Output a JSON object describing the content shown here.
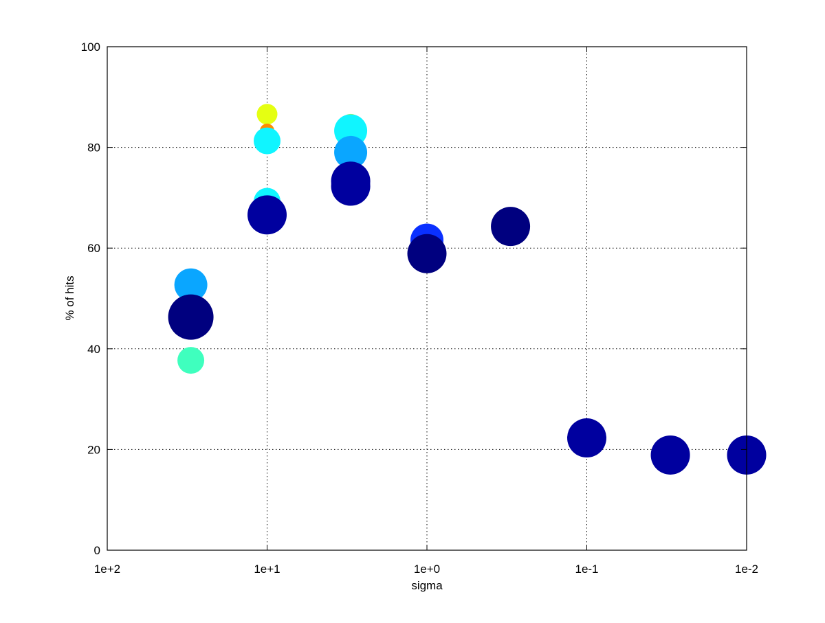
{
  "chart_data": {
    "type": "scatter",
    "title": "",
    "xlabel": "sigma",
    "ylabel": "% of hits",
    "x_scale": "log",
    "x_reversed": true,
    "xlim": [
      100,
      0.01
    ],
    "ylim": [
      0,
      100
    ],
    "grid": true,
    "x_ticks": [
      {
        "value": 100,
        "label": "1e+2"
      },
      {
        "value": 10,
        "label": "1e+1"
      },
      {
        "value": 1,
        "label": "1e+0"
      },
      {
        "value": 0.1,
        "label": "1e-1"
      },
      {
        "value": 0.01,
        "label": "1e-2"
      }
    ],
    "y_ticks": [
      {
        "value": 0,
        "label": "0"
      },
      {
        "value": 20,
        "label": "20"
      },
      {
        "value": 40,
        "label": "40"
      },
      {
        "value": 60,
        "label": "60"
      },
      {
        "value": 80,
        "label": "80"
      },
      {
        "value": 100,
        "label": "100"
      }
    ],
    "points": [
      {
        "x": 30,
        "y": 52.7,
        "marker_size": 4,
        "color": "#0aa6ff"
      },
      {
        "x": 30,
        "y": 46.3,
        "marker_size": 6,
        "color": "#00007f"
      },
      {
        "x": 30,
        "y": 37.7,
        "marker_size": 3,
        "color": "#3fffbe"
      },
      {
        "x": 10,
        "y": 86.6,
        "marker_size": 2,
        "color": "#e5ff12"
      },
      {
        "x": 10,
        "y": 83.3,
        "marker_size": 1,
        "color": "#ff8c00"
      },
      {
        "x": 10,
        "y": 81.3,
        "marker_size": 3,
        "color": "#10f5ff"
      },
      {
        "x": 10,
        "y": 69.3,
        "marker_size": 3,
        "color": "#10f5ff"
      },
      {
        "x": 10,
        "y": 66.6,
        "marker_size": 5,
        "color": "#00009f"
      },
      {
        "x": 3,
        "y": 84.6,
        "marker_size": 2,
        "color": "#f5f000"
      },
      {
        "x": 3,
        "y": 83.3,
        "marker_size": 4,
        "color": "#10f5ff"
      },
      {
        "x": 3,
        "y": 79.0,
        "marker_size": 4,
        "color": "#0aa6ff"
      },
      {
        "x": 3,
        "y": 73.3,
        "marker_size": 5,
        "color": "#00009f"
      },
      {
        "x": 3,
        "y": 72.3,
        "marker_size": 5,
        "color": "#00009f"
      },
      {
        "x": 1,
        "y": 61.6,
        "marker_size": 4,
        "color": "#0a30ff"
      },
      {
        "x": 1,
        "y": 58.9,
        "marker_size": 5,
        "color": "#00007f"
      },
      {
        "x": 0.3,
        "y": 64.3,
        "marker_size": 5,
        "color": "#00007f"
      },
      {
        "x": 0.1,
        "y": 22.3,
        "marker_size": 5,
        "color": "#00009f"
      },
      {
        "x": 0.03,
        "y": 18.9,
        "marker_size": 5,
        "color": "#00009f"
      },
      {
        "x": 0.01,
        "y": 18.9,
        "marker_size": 5,
        "color": "#00009f"
      }
    ]
  }
}
